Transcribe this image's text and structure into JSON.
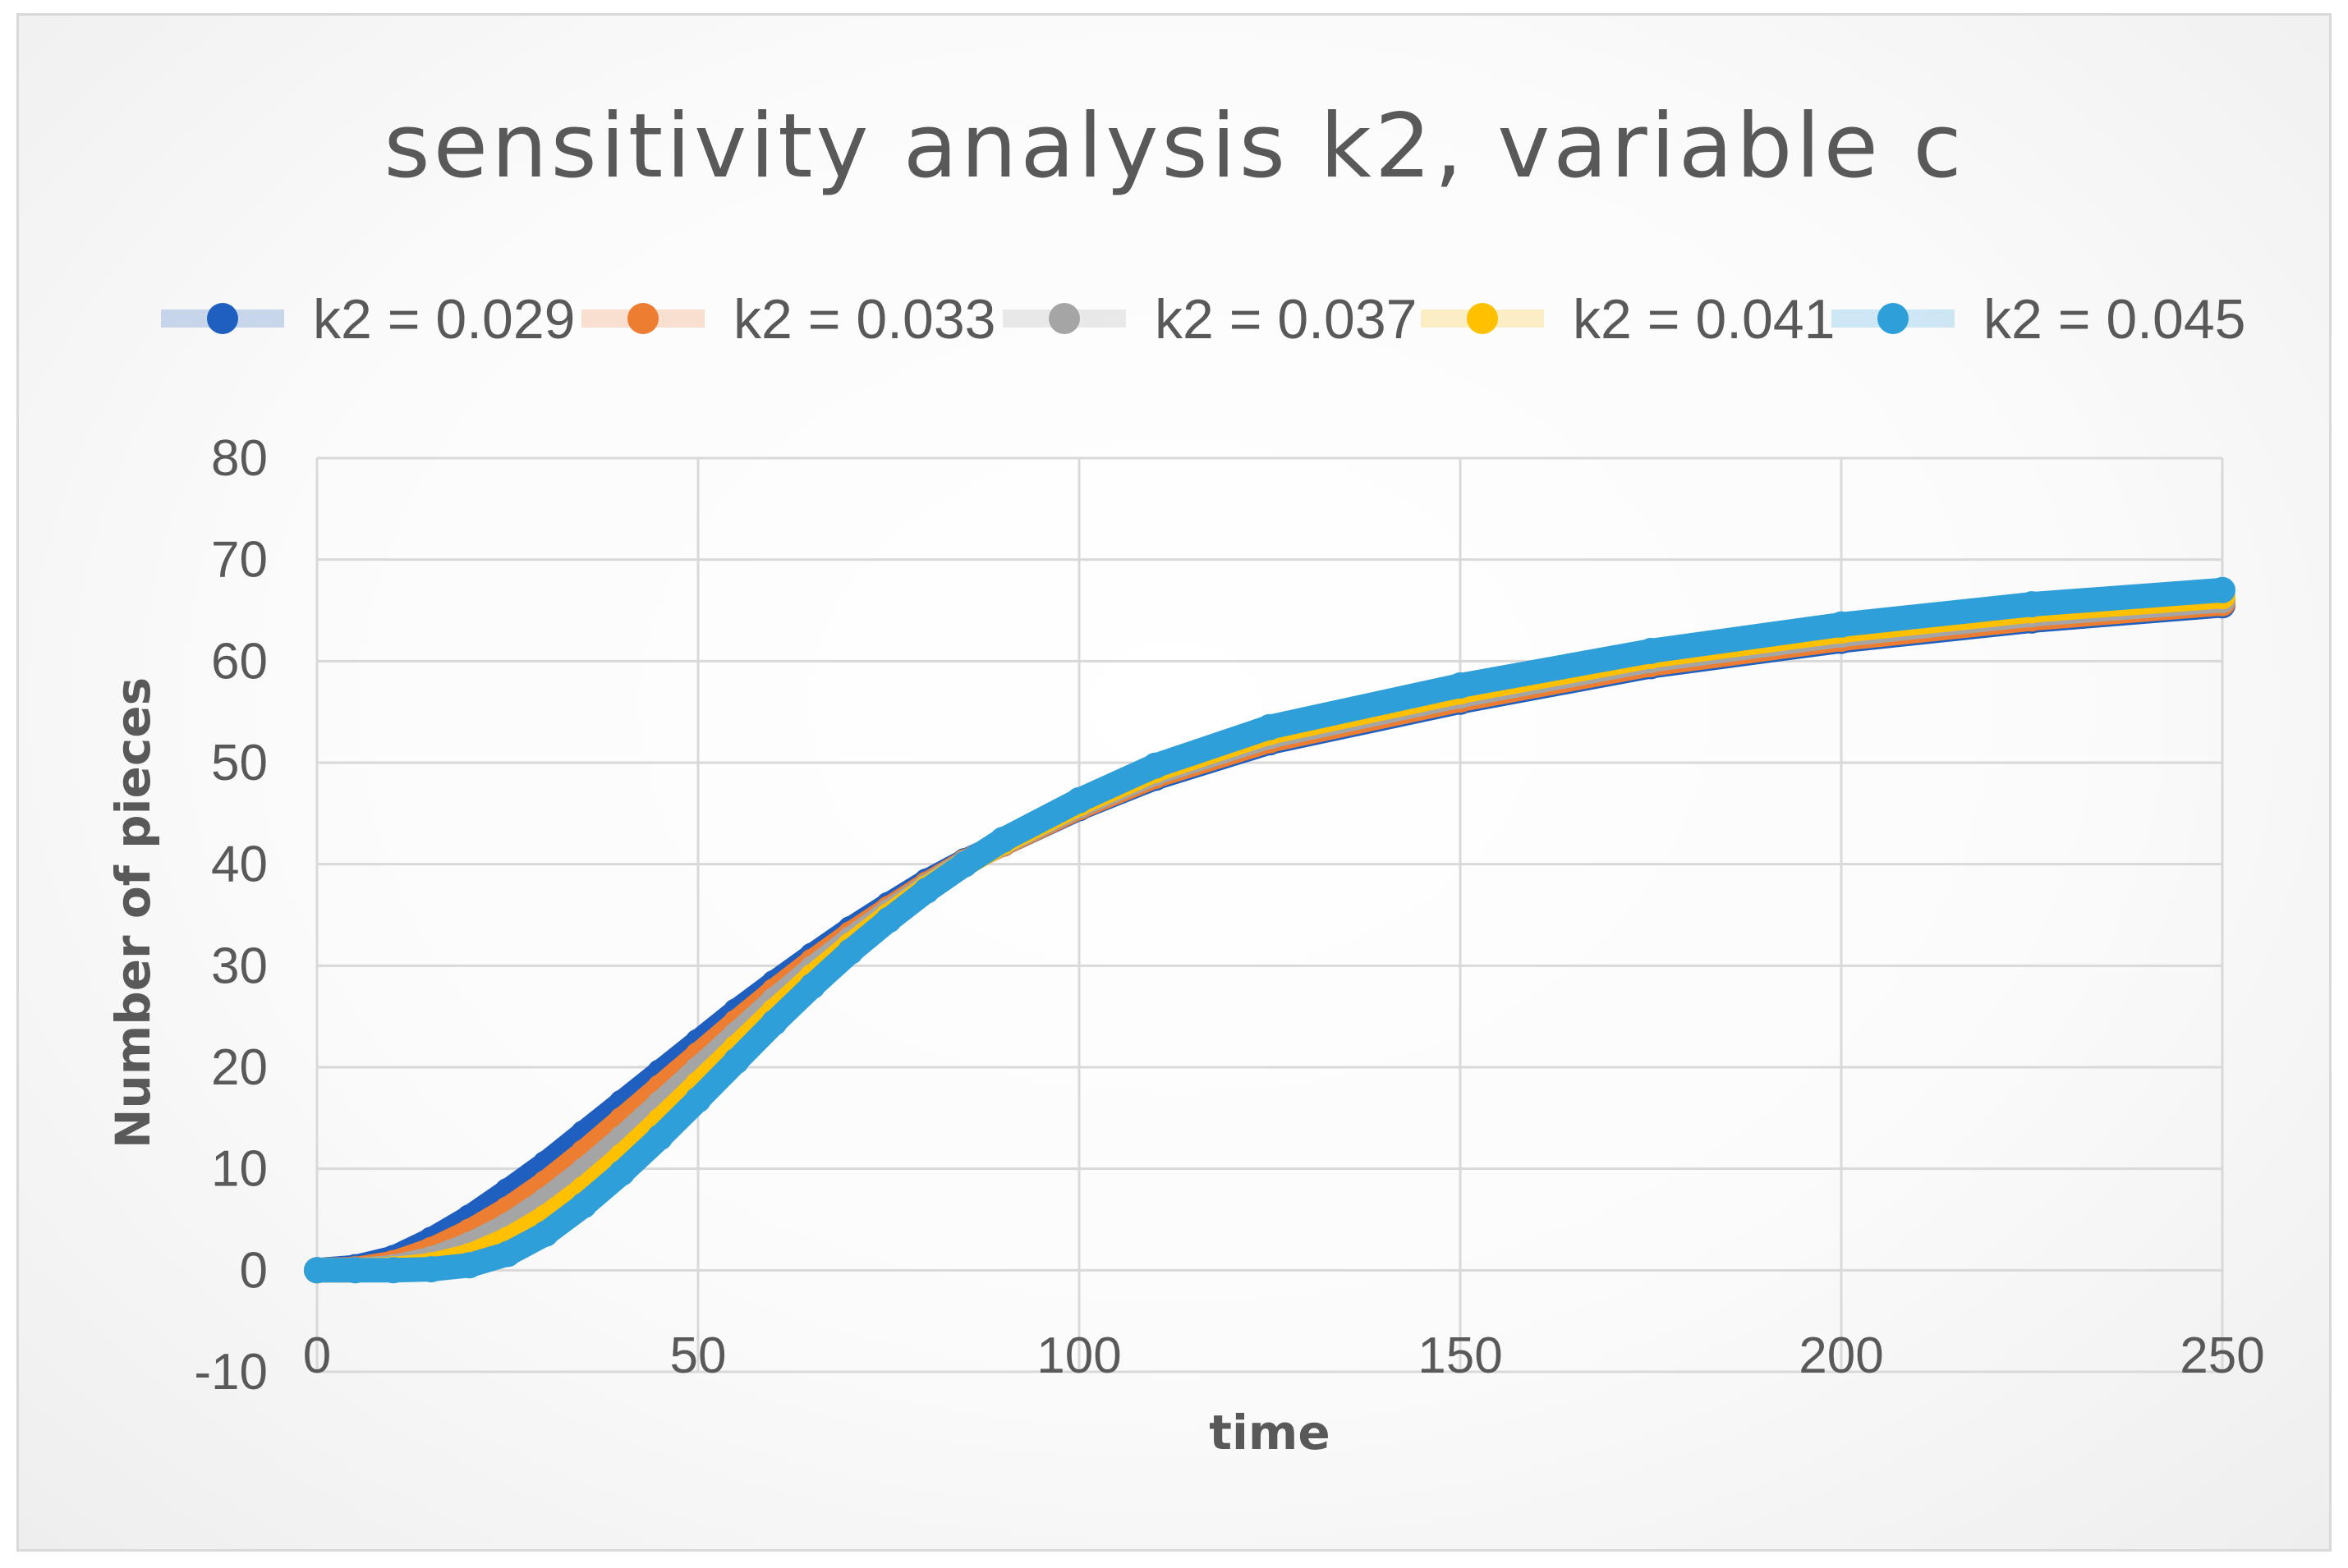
{
  "chart_data": {
    "type": "scatter",
    "title": "sensitivity  analysis  k2, variable  c",
    "xlabel": "time",
    "ylabel": "Number of pieces",
    "xlim": [
      0,
      250
    ],
    "ylim": [
      -10,
      80
    ],
    "x_ticks": [
      "0",
      "50",
      "100",
      "150",
      "200",
      "250"
    ],
    "y_ticks": [
      "-10",
      "0",
      "10",
      "20",
      "30",
      "40",
      "50",
      "60",
      "70",
      "80"
    ],
    "legend_position": "top",
    "grid": true,
    "series": [
      {
        "name": "k2 = 0.029",
        "color": "#1f5fbf",
        "x": [
          0,
          5,
          10,
          15,
          20,
          25,
          30,
          35,
          40,
          45,
          50,
          55,
          60,
          65,
          70,
          75,
          80,
          85,
          90,
          100,
          110,
          125,
          150,
          175,
          200,
          225,
          250
        ],
        "y": [
          0,
          0.3,
          1.2,
          3,
          5.2,
          7.8,
          10.5,
          13.5,
          16.5,
          19.5,
          22.5,
          25.5,
          28.3,
          31,
          33.6,
          36,
          38.3,
          40.3,
          42,
          45.5,
          48.5,
          52,
          56,
          59.5,
          62,
          64,
          65.5
        ]
      },
      {
        "name": "k2 = 0.033",
        "color": "#ed7d31",
        "x": [
          0,
          5,
          10,
          15,
          20,
          25,
          30,
          35,
          40,
          45,
          50,
          55,
          60,
          65,
          70,
          75,
          80,
          85,
          90,
          100,
          110,
          125,
          150,
          175,
          200,
          225,
          250
        ],
        "y": [
          0,
          0.1,
          0.7,
          2,
          3.8,
          6,
          8.6,
          11.6,
          14.8,
          18,
          21.2,
          24.4,
          27.5,
          30.4,
          33.1,
          35.6,
          38,
          40.2,
          42,
          45.6,
          48.7,
          52.2,
          56.2,
          59.7,
          62.2,
          64.2,
          65.7
        ]
      },
      {
        "name": "k2 = 0.037",
        "color": "#a5a5a5",
        "x": [
          0,
          5,
          10,
          15,
          20,
          25,
          30,
          35,
          40,
          45,
          50,
          55,
          60,
          65,
          70,
          75,
          80,
          85,
          90,
          100,
          110,
          125,
          150,
          175,
          200,
          225,
          250
        ],
        "y": [
          0,
          0,
          0.3,
          1.1,
          2.5,
          4.4,
          6.9,
          9.8,
          13,
          16.4,
          19.8,
          23.2,
          26.6,
          29.7,
          32.6,
          35.3,
          37.8,
          40.1,
          42.1,
          45.8,
          49,
          52.6,
          56.6,
          60.1,
          62.6,
          64.6,
          66
        ]
      },
      {
        "name": "k2 = 0.041",
        "color": "#ffc000",
        "x": [
          0,
          5,
          10,
          15,
          20,
          25,
          30,
          35,
          40,
          45,
          50,
          55,
          60,
          65,
          70,
          75,
          80,
          85,
          90,
          100,
          110,
          125,
          150,
          175,
          200,
          225,
          250
        ],
        "y": [
          0,
          0,
          0.1,
          0.5,
          1.4,
          3,
          5.2,
          8,
          11.2,
          14.7,
          18.3,
          21.9,
          25.5,
          28.9,
          32,
          34.9,
          37.6,
          40,
          42.2,
          46,
          49.3,
          53,
          57,
          60.5,
          63,
          65,
          66.4
        ]
      },
      {
        "name": "k2 = 0.045",
        "color": "#2e9fd9",
        "x": [
          0,
          5,
          10,
          15,
          20,
          25,
          30,
          35,
          40,
          45,
          50,
          55,
          60,
          65,
          70,
          75,
          80,
          85,
          90,
          100,
          110,
          125,
          150,
          175,
          200,
          225,
          250
        ],
        "y": [
          0,
          0,
          0,
          0.1,
          0.5,
          1.6,
          3.6,
          6.4,
          9.6,
          13.1,
          16.8,
          20.6,
          24.4,
          28,
          31.4,
          34.5,
          37.4,
          40,
          42.4,
          46.3,
          49.7,
          53.5,
          57.6,
          61,
          63.6,
          65.6,
          67
        ]
      }
    ]
  }
}
